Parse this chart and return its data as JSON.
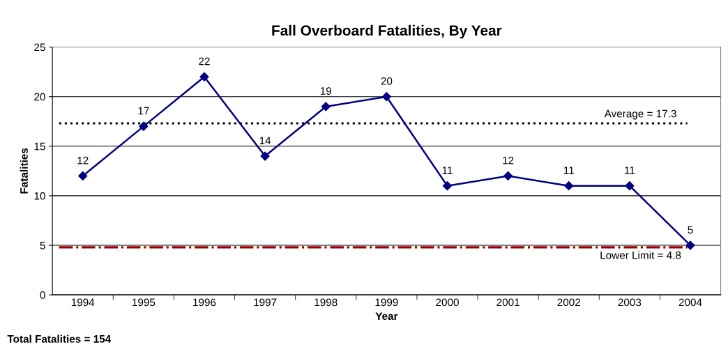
{
  "chart_data": {
    "type": "line",
    "title": "Fall Overboard Fatalities, By Year",
    "xlabel": "Year",
    "ylabel": "Fatalities",
    "categories": [
      "1994",
      "1995",
      "1996",
      "1997",
      "1998",
      "1999",
      "2000",
      "2001",
      "2002",
      "2003",
      "2004"
    ],
    "series": [
      {
        "color": "#000080",
        "values": [
          12,
          17,
          22,
          14,
          19,
          20,
          11,
          12,
          11,
          11,
          5
        ]
      }
    ],
    "ylim": [
      0,
      25
    ],
    "yticks": [
      0,
      5,
      10,
      15,
      20,
      25
    ],
    "grid": "y",
    "marker": "diamond",
    "line_style": "solid",
    "data_labels": true,
    "ref_lines": [
      {
        "axis": "y",
        "value": 17.3,
        "label": "Average = 17.3",
        "color": "#000000",
        "line_style": "dotted"
      },
      {
        "axis": "y",
        "value": 4.8,
        "label": "Lower Limit = 4.8",
        "color": "#990000",
        "line_style": "dashdot"
      }
    ],
    "annotations": [
      "Total Fatalities = 154"
    ]
  }
}
